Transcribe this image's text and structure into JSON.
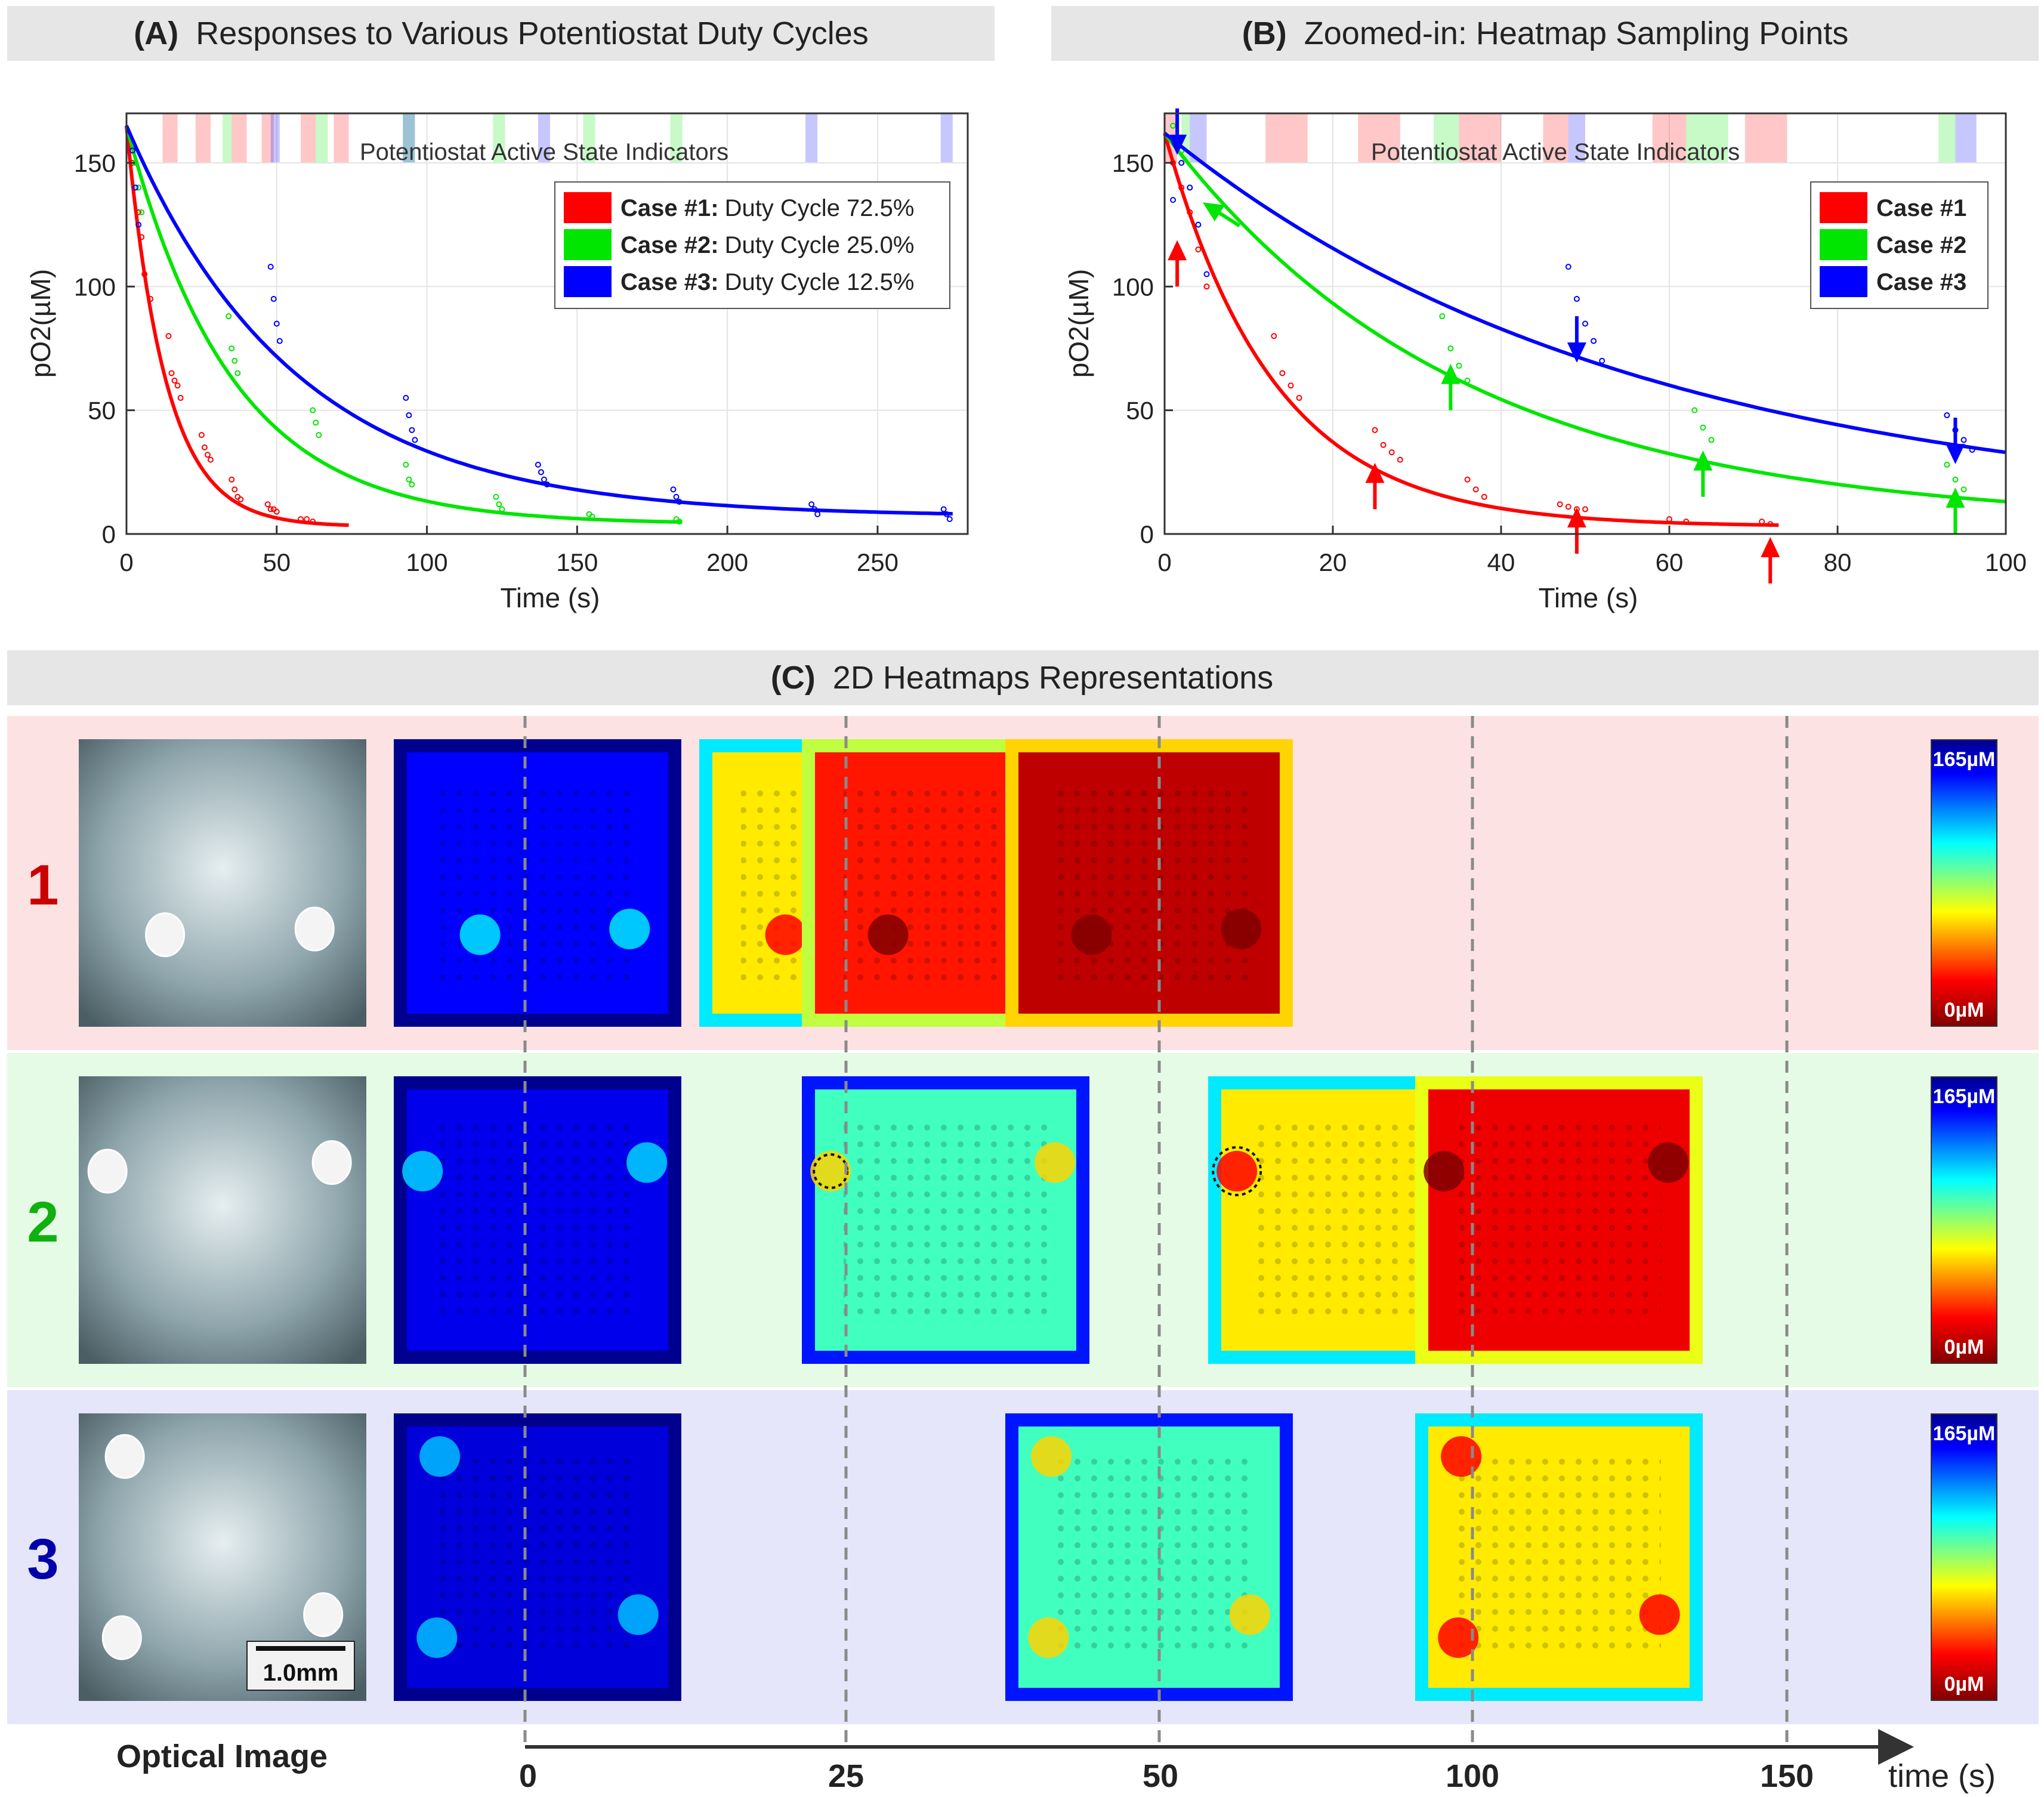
{
  "panel_a": {
    "letter": "(A)",
    "title": "Responses to Various Potentiostat Duty Cycles"
  },
  "panel_b": {
    "letter": "(B)",
    "title": "Zoomed-in: Heatmap Sampling Points"
  },
  "panel_c": {
    "letter": "(C)",
    "title": "2D Heatmaps Representations"
  },
  "indicator_label": "Potentiostat Active State Indicators",
  "legend_a": [
    {
      "case": "Case #1:",
      "desc": "Duty Cycle 72.5%",
      "color": "#ff0000"
    },
    {
      "case": "Case #2:",
      "desc": "Duty Cycle 25.0%",
      "color": "#00e600"
    },
    {
      "case": "Case #3:",
      "desc": "Duty Cycle 12.5%",
      "color": "#0000ff"
    }
  ],
  "legend_b": [
    {
      "case": "Case #1",
      "color": "#ff0000"
    },
    {
      "case": "Case #2",
      "color": "#00e600"
    },
    {
      "case": "Case #3",
      "color": "#0000ff"
    }
  ],
  "colors": {
    "red": "#ff0000",
    "green": "#00e600",
    "blue": "#0000ff",
    "bg_red": "#fde2e4",
    "bg_green": "#e5fbe5",
    "bg_blue": "#e6e6fa",
    "header": "#e6e6e6"
  },
  "chart_data": [
    {
      "type": "line",
      "title": "Responses to Various Potentiostat Duty Cycles",
      "xlabel": "Time (s)",
      "ylabel": "pO2(µM)",
      "xlim": [
        0,
        280
      ],
      "ylim": [
        0,
        170
      ],
      "xticks": [
        0,
        50,
        100,
        150,
        200,
        250
      ],
      "yticks": [
        0,
        50,
        100,
        150
      ],
      "series": [
        {
          "name": "Case #1",
          "color": "#ff0000",
          "c0": 165,
          "cinf": 3,
          "tau": 13,
          "tmax": 74,
          "points": [
            [
              2,
              150
            ],
            [
              3,
              140
            ],
            [
              4,
              130
            ],
            [
              5,
              120
            ],
            [
              6,
              105
            ],
            [
              8,
              95
            ],
            [
              14,
              80
            ],
            [
              15,
              65
            ],
            [
              16,
              62
            ],
            [
              17,
              60
            ],
            [
              18,
              55
            ],
            [
              25,
              40
            ],
            [
              26,
              35
            ],
            [
              27,
              32
            ],
            [
              28,
              30
            ],
            [
              35,
              22
            ],
            [
              36,
              18
            ],
            [
              37,
              15
            ],
            [
              38,
              14
            ],
            [
              47,
              12
            ],
            [
              48,
              10
            ],
            [
              49,
              10
            ],
            [
              50,
              9
            ],
            [
              58,
              6
            ],
            [
              60,
              6
            ],
            [
              62,
              5
            ]
          ]
        },
        {
          "name": "Case #2",
          "color": "#00e600",
          "c0": 165,
          "cinf": 4,
          "tau": 35,
          "tmax": 185,
          "points": [
            [
              3,
              150
            ],
            [
              4,
              140
            ],
            [
              5,
              130
            ],
            [
              34,
              88
            ],
            [
              35,
              75
            ],
            [
              36,
              70
            ],
            [
              37,
              65
            ],
            [
              62,
              50
            ],
            [
              63,
              45
            ],
            [
              64,
              40
            ],
            [
              93,
              28
            ],
            [
              94,
              22
            ],
            [
              95,
              20
            ],
            [
              123,
              15
            ],
            [
              124,
              12
            ],
            [
              125,
              10
            ],
            [
              154,
              8
            ],
            [
              155,
              7
            ],
            [
              183,
              6
            ],
            [
              184,
              5
            ]
          ]
        },
        {
          "name": "Case #3",
          "color": "#0000ff",
          "c0": 165,
          "cinf": 7,
          "tau": 56,
          "tmax": 275,
          "points": [
            [
              2,
              155
            ],
            [
              3,
              140
            ],
            [
              4,
              125
            ],
            [
              48,
              108
            ],
            [
              49,
              95
            ],
            [
              50,
              85
            ],
            [
              51,
              78
            ],
            [
              93,
              55
            ],
            [
              94,
              48
            ],
            [
              95,
              42
            ],
            [
              96,
              38
            ],
            [
              137,
              28
            ],
            [
              138,
              25
            ],
            [
              139,
              22
            ],
            [
              140,
              20
            ],
            [
              182,
              18
            ],
            [
              183,
              15
            ],
            [
              184,
              13
            ],
            [
              228,
              12
            ],
            [
              229,
              10
            ],
            [
              230,
              8
            ],
            [
              272,
              10
            ],
            [
              273,
              8
            ],
            [
              274,
              6
            ]
          ]
        }
      ],
      "indicators": [
        {
          "x0": 12,
          "x1": 17,
          "color": "#ff0000"
        },
        {
          "x0": 23,
          "x1": 28,
          "color": "#ff0000"
        },
        {
          "x0": 32,
          "x1": 35,
          "color": "#00e600"
        },
        {
          "x0": 35,
          "x1": 40,
          "color": "#ff0000"
        },
        {
          "x0": 45,
          "x1": 49,
          "color": "#ff0000"
        },
        {
          "x0": 48,
          "x1": 51,
          "color": "#0000ff"
        },
        {
          "x0": 58,
          "x1": 63,
          "color": "#ff0000"
        },
        {
          "x0": 63,
          "x1": 67,
          "color": "#00e600"
        },
        {
          "x0": 69,
          "x1": 74,
          "color": "#ff0000"
        },
        {
          "x0": 92,
          "x1": 96,
          "color": "#00e600"
        },
        {
          "x0": 92,
          "x1": 96,
          "color": "#0000ff"
        },
        {
          "x0": 122,
          "x1": 126,
          "color": "#00e600"
        },
        {
          "x0": 137,
          "x1": 141,
          "color": "#0000ff"
        },
        {
          "x0": 152,
          "x1": 156,
          "color": "#00e600"
        },
        {
          "x0": 181,
          "x1": 185,
          "color": "#00e600"
        },
        {
          "x0": 226,
          "x1": 230,
          "color": "#0000ff"
        },
        {
          "x0": 271,
          "x1": 275,
          "color": "#0000ff"
        }
      ]
    },
    {
      "type": "line",
      "title": "Zoomed-in: Heatmap Sampling Points",
      "xlabel": "Time (s)",
      "ylabel": "pO2(µM)",
      "xlim": [
        0,
        100
      ],
      "ylim": [
        0,
        170
      ],
      "xticks": [
        0,
        20,
        40,
        60,
        80,
        100
      ],
      "yticks": [
        0,
        50,
        100,
        150
      ],
      "series": [
        {
          "name": "Case #1",
          "color": "#ff0000",
          "c0": 162,
          "cinf": 3,
          "tau": 13,
          "tmax": 73,
          "points": [
            [
              1,
              150
            ],
            [
              2,
              140
            ],
            [
              3,
              130
            ],
            [
              4,
              115
            ],
            [
              5,
              100
            ],
            [
              13,
              80
            ],
            [
              14,
              65
            ],
            [
              15,
              60
            ],
            [
              16,
              55
            ],
            [
              25,
              42
            ],
            [
              26,
              36
            ],
            [
              27,
              33
            ],
            [
              28,
              30
            ],
            [
              36,
              22
            ],
            [
              37,
              18
            ],
            [
              38,
              15
            ],
            [
              47,
              12
            ],
            [
              48,
              11
            ],
            [
              49,
              10
            ],
            [
              50,
              10
            ],
            [
              60,
              6
            ],
            [
              62,
              5
            ],
            [
              71,
              5
            ],
            [
              72,
              4
            ]
          ]
        },
        {
          "name": "Case #2",
          "color": "#00e600",
          "c0": 162,
          "cinf": 4,
          "tau": 35,
          "tmax": 100,
          "points": [
            [
              1,
              165
            ],
            [
              2,
              155
            ],
            [
              3,
              140
            ],
            [
              4,
              125
            ],
            [
              33,
              88
            ],
            [
              34,
              75
            ],
            [
              35,
              68
            ],
            [
              36,
              62
            ],
            [
              63,
              50
            ],
            [
              64,
              43
            ],
            [
              65,
              38
            ],
            [
              93,
              28
            ],
            [
              94,
              22
            ],
            [
              95,
              18
            ]
          ]
        },
        {
          "name": "Case #3",
          "color": "#0000ff",
          "c0": 162,
          "cinf": 7,
          "tau": 56,
          "tmax": 100,
          "points": [
            [
              1,
              135
            ],
            [
              2,
              150
            ],
            [
              3,
              140
            ],
            [
              4,
              125
            ],
            [
              5,
              105
            ],
            [
              48,
              108
            ],
            [
              49,
              95
            ],
            [
              50,
              85
            ],
            [
              51,
              78
            ],
            [
              52,
              70
            ],
            [
              93,
              48
            ],
            [
              94,
              42
            ],
            [
              95,
              38
            ],
            [
              96,
              34
            ]
          ]
        }
      ],
      "indicators": [
        {
          "x0": 0,
          "x1": 1.5,
          "color": "#ff0000"
        },
        {
          "x0": 2,
          "x1": 3,
          "color": "#00e600"
        },
        {
          "x0": 3,
          "x1": 5,
          "color": "#0000ff"
        },
        {
          "x0": 12,
          "x1": 17,
          "color": "#ff0000"
        },
        {
          "x0": 23,
          "x1": 28,
          "color": "#ff0000"
        },
        {
          "x0": 32,
          "x1": 35,
          "color": "#00e600"
        },
        {
          "x0": 35,
          "x1": 40,
          "color": "#ff0000"
        },
        {
          "x0": 45,
          "x1": 48,
          "color": "#ff0000"
        },
        {
          "x0": 48,
          "x1": 50,
          "color": "#0000ff"
        },
        {
          "x0": 58,
          "x1": 62,
          "color": "#ff0000"
        },
        {
          "x0": 62,
          "x1": 67,
          "color": "#00e600"
        },
        {
          "x0": 69,
          "x1": 74,
          "color": "#ff0000"
        },
        {
          "x0": 92,
          "x1": 94,
          "color": "#00e600"
        },
        {
          "x0": 94,
          "x1": 96.5,
          "color": "#0000ff"
        }
      ],
      "sampling_arrows": [
        {
          "t": 1.5,
          "v": 100,
          "dir": "up",
          "color": "#ff0000"
        },
        {
          "t": 25,
          "v": 10,
          "dir": "up",
          "color": "#ff0000"
        },
        {
          "t": 49,
          "v": -8,
          "dir": "up",
          "color": "#ff0000"
        },
        {
          "t": 72,
          "v": -20,
          "dir": "up",
          "color": "#ff0000"
        },
        {
          "t": 34,
          "v": 50,
          "dir": "up",
          "color": "#00e600"
        },
        {
          "t": 64,
          "v": 15,
          "dir": "up",
          "color": "#00e600"
        },
        {
          "t": 94,
          "v": 0,
          "dir": "up",
          "color": "#00e600"
        },
        {
          "t": 5,
          "v": 133,
          "dir": "upleft",
          "color": "#00e600"
        },
        {
          "t": 1.5,
          "v": 172,
          "dir": "down",
          "color": "#0000ff"
        },
        {
          "t": 49,
          "v": 88,
          "dir": "down",
          "color": "#0000ff"
        },
        {
          "t": 94,
          "v": 47,
          "dir": "down",
          "color": "#0000ff"
        }
      ]
    }
  ],
  "timeline": {
    "ticks": [
      "0",
      "25",
      "50",
      "100",
      "150"
    ],
    "label": "time (s)"
  },
  "rows": [
    {
      "label": "1",
      "color": "#cc0000",
      "bg": "#fde2e4",
      "cells": [
        1,
        2,
        3,
        4
      ],
      "levels": [
        0.12,
        0.62,
        0.82,
        0.92
      ],
      "hotspots": [
        [
          0.3,
          0.68
        ],
        [
          0.82,
          0.66
        ]
      ]
    },
    {
      "label": "2",
      "color": "#10b010",
      "bg": "#e5fbe5",
      "cells": [
        1,
        3,
        5,
        7
      ],
      "levels": [
        0.1,
        0.42,
        0.62,
        0.86
      ],
      "hotspots": [
        [
          0.1,
          0.33
        ],
        [
          0.88,
          0.3
        ]
      ]
    },
    {
      "label": "3",
      "color": "#0000aa",
      "bg": "#e6e6fa",
      "cells": [
        1,
        4,
        7
      ],
      "levels": [
        0.08,
        0.42,
        0.62
      ],
      "hotspots": [
        [
          0.16,
          0.15
        ],
        [
          0.15,
          0.78
        ],
        [
          0.85,
          0.7
        ]
      ]
    }
  ],
  "colorbar": {
    "max_label": "165µM",
    "min_label": "0µM"
  },
  "optical": {
    "caption": "Optical Image",
    "scalebar": "1.0mm"
  }
}
